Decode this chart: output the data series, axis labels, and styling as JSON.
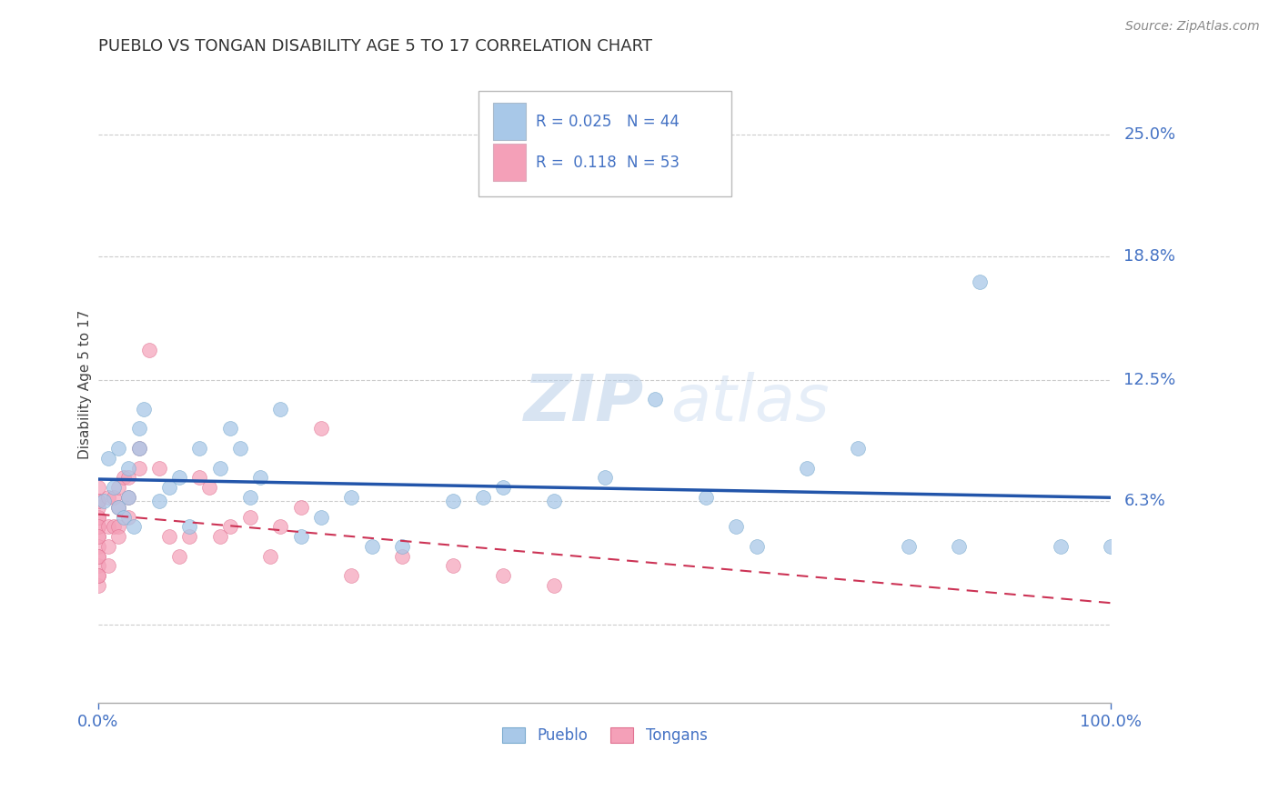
{
  "title": "PUEBLO VS TONGAN DISABILITY AGE 5 TO 17 CORRELATION CHART",
  "source_text": "Source: ZipAtlas.com",
  "ylabel": "Disability Age 5 to 17",
  "xlim": [
    0.0,
    1.0
  ],
  "ylim": [
    -0.04,
    0.285
  ],
  "ytick_vals": [
    0.0,
    0.063,
    0.125,
    0.188,
    0.25
  ],
  "ytick_labels": [
    "",
    "6.3%",
    "12.5%",
    "18.8%",
    "25.0%"
  ],
  "xtick_vals": [
    0.0,
    1.0
  ],
  "xtick_labels": [
    "0.0%",
    "100.0%"
  ],
  "pueblo_R": 0.025,
  "pueblo_N": 44,
  "tongan_R": 0.118,
  "tongan_N": 53,
  "pueblo_color": "#a8c8e8",
  "pueblo_edge_color": "#7aaace",
  "pueblo_line_color": "#2255aa",
  "tongan_color": "#f4a0b8",
  "tongan_edge_color": "#e07090",
  "tongan_line_color": "#cc3355",
  "grid_color": "#cccccc",
  "pueblo_x": [
    0.005,
    0.01,
    0.015,
    0.02,
    0.02,
    0.025,
    0.03,
    0.03,
    0.035,
    0.04,
    0.04,
    0.045,
    0.06,
    0.07,
    0.08,
    0.09,
    0.1,
    0.12,
    0.13,
    0.14,
    0.15,
    0.16,
    0.18,
    0.2,
    0.22,
    0.25,
    0.27,
    0.3,
    0.35,
    0.38,
    0.4,
    0.45,
    0.5,
    0.55,
    0.6,
    0.63,
    0.65,
    0.7,
    0.75,
    0.8,
    0.85,
    0.87,
    0.95,
    1.0
  ],
  "pueblo_y": [
    0.063,
    0.085,
    0.07,
    0.06,
    0.09,
    0.055,
    0.08,
    0.065,
    0.05,
    0.09,
    0.1,
    0.11,
    0.063,
    0.07,
    0.075,
    0.05,
    0.09,
    0.08,
    0.1,
    0.09,
    0.065,
    0.075,
    0.11,
    0.045,
    0.055,
    0.065,
    0.04,
    0.04,
    0.063,
    0.065,
    0.07,
    0.063,
    0.075,
    0.115,
    0.065,
    0.05,
    0.04,
    0.08,
    0.09,
    0.04,
    0.04,
    0.175,
    0.04,
    0.04
  ],
  "tongan_x": [
    0.0,
    0.0,
    0.0,
    0.0,
    0.0,
    0.0,
    0.0,
    0.0,
    0.0,
    0.0,
    0.0,
    0.0,
    0.0,
    0.0,
    0.0,
    0.0,
    0.0,
    0.0,
    0.01,
    0.01,
    0.01,
    0.01,
    0.015,
    0.015,
    0.02,
    0.02,
    0.02,
    0.02,
    0.025,
    0.03,
    0.03,
    0.03,
    0.04,
    0.04,
    0.05,
    0.06,
    0.07,
    0.08,
    0.09,
    0.1,
    0.11,
    0.12,
    0.13,
    0.15,
    0.17,
    0.18,
    0.2,
    0.22,
    0.25,
    0.3,
    0.35,
    0.4,
    0.45
  ],
  "tongan_y": [
    0.063,
    0.063,
    0.055,
    0.05,
    0.045,
    0.055,
    0.07,
    0.04,
    0.05,
    0.03,
    0.02,
    0.035,
    0.025,
    0.06,
    0.063,
    0.025,
    0.045,
    0.035,
    0.065,
    0.05,
    0.04,
    0.03,
    0.065,
    0.05,
    0.07,
    0.06,
    0.05,
    0.045,
    0.075,
    0.075,
    0.065,
    0.055,
    0.09,
    0.08,
    0.14,
    0.08,
    0.045,
    0.035,
    0.045,
    0.075,
    0.07,
    0.045,
    0.05,
    0.055,
    0.035,
    0.05,
    0.06,
    0.1,
    0.025,
    0.035,
    0.03,
    0.025,
    0.02
  ]
}
